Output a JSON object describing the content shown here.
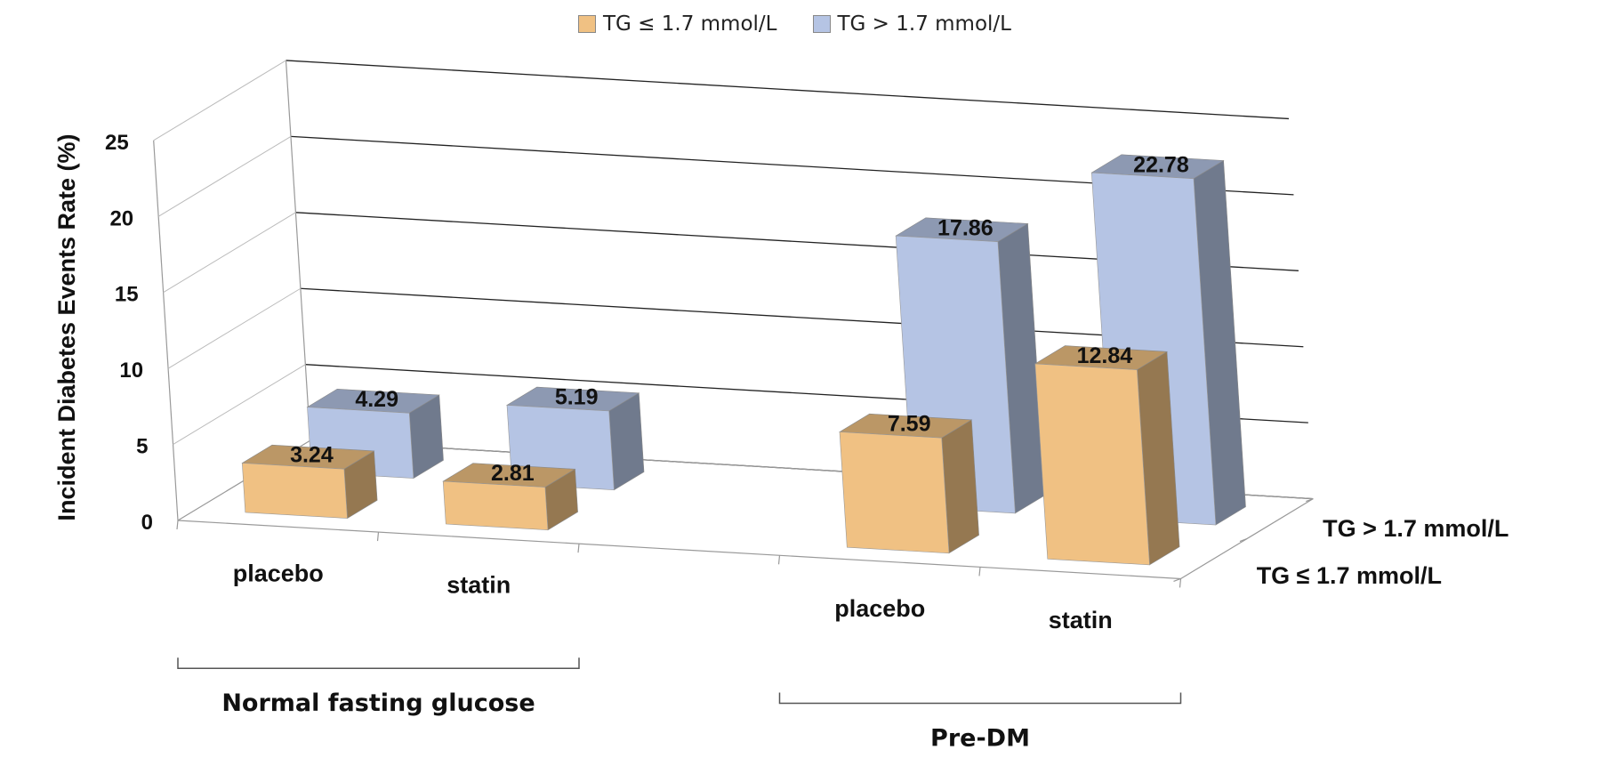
{
  "chart_data": {
    "type": "bar",
    "ylabel": "Incident Diabetes Events Rate (%)",
    "ylim": [
      0,
      25
    ],
    "yticks": [
      "0",
      "5",
      "10",
      "15",
      "20",
      "25"
    ],
    "categories": [
      "placebo",
      "statin",
      "placebo",
      "statin"
    ],
    "groups": [
      {
        "label": "Normal fasting glucose",
        "categories": [
          "placebo",
          "statin"
        ]
      },
      {
        "label": "Pre-DM",
        "categories": [
          "placebo",
          "statin"
        ]
      }
    ],
    "depth_labels": [
      "TG > 1.7 mmol/L",
      "TG ≤ 1.7 mmol/L"
    ],
    "series": [
      {
        "name": "TG ≤ 1.7 mmol/L",
        "values": [
          3.24,
          2.81,
          7.59,
          12.84
        ],
        "labels": [
          "3.24",
          "2.81",
          "7.59",
          "12.84"
        ],
        "color": "#f0c183"
      },
      {
        "name": "TG > 1.7 mmol/L",
        "values": [
          4.29,
          5.19,
          17.86,
          22.78
        ],
        "labels": [
          "4.29",
          "5.19",
          "17.86",
          "22.78"
        ],
        "color": "#b5c4e4"
      }
    ],
    "legend_position": "top",
    "grid": true
  }
}
